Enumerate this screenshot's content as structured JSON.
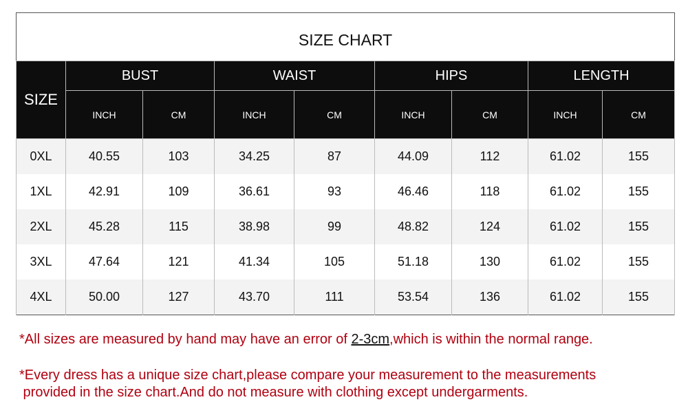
{
  "title": "SIZE CHART",
  "size_header": "SIZE",
  "groups": [
    "BUST",
    "WAIST",
    "HIPS",
    "LENGTH"
  ],
  "units": [
    "INCH",
    "CM"
  ],
  "rows": [
    {
      "size": "0XL",
      "values": [
        "40.55",
        "103",
        "34.25",
        "87",
        "44.09",
        "112",
        "61.02",
        "155"
      ]
    },
    {
      "size": "1XL",
      "values": [
        "42.91",
        "109",
        "36.61",
        "93",
        "46.46",
        "118",
        "61.02",
        "155"
      ]
    },
    {
      "size": "2XL",
      "values": [
        "45.28",
        "115",
        "38.98",
        "99",
        "48.82",
        "124",
        "61.02",
        "155"
      ]
    },
    {
      "size": "3XL",
      "values": [
        "47.64",
        "121",
        "41.34",
        "105",
        "51.18",
        "130",
        "61.02",
        "155"
      ]
    },
    {
      "size": "4XL",
      "values": [
        "50.00",
        "127",
        "43.70",
        "111",
        "53.54",
        "136",
        "61.02",
        "155"
      ]
    }
  ],
  "notes": {
    "note1_before": "*All sizes are measured by hand may have an error of ",
    "note1_highlight": "2-3cm",
    "note1_after": ",which is within the normal range.",
    "note2_line1": "*Every dress has a unique size chart,please compare your measurement to the measurements",
    "note2_line2": " provided in the size chart.And do not measure with clothing except undergarments."
  },
  "colors": {
    "header_bg": "#0d0d0d",
    "note_text": "#b00010",
    "row_alt": "#f3f3f3"
  }
}
